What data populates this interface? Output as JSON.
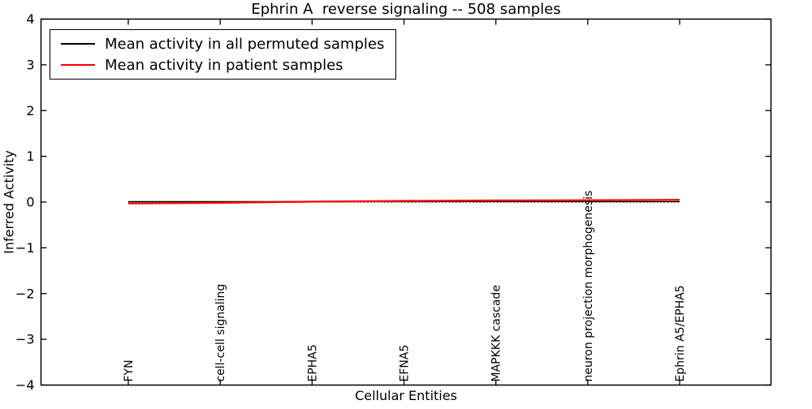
{
  "chart_data": {
    "type": "line",
    "title": "Ephrin A  reverse signaling -- 508 samples",
    "xlabel": "Cellular Entities",
    "ylabel": "Inferred Activity",
    "ylim": [
      -4,
      4
    ],
    "yticks": [
      4,
      3,
      2,
      1,
      0,
      -1,
      -2,
      -3,
      -4
    ],
    "categories": [
      "FYN",
      "cell-cell signaling",
      "EPHA5",
      "EFNA5",
      "MAPKKK cascade",
      "neuron projection morphogenesis",
      "Ephrin A5/EPHA5"
    ],
    "series": [
      {
        "name": "Mean activity in all permuted samples",
        "color": "#000000",
        "values": [
          0.01,
          0.01,
          0.01,
          0.01,
          0.01,
          0.01,
          0.01
        ]
      },
      {
        "name": "Mean activity in patient samples",
        "color": "#ff0000",
        "values": [
          -0.03,
          -0.015,
          0.01,
          0.025,
          0.035,
          0.04,
          0.05
        ]
      }
    ],
    "baseline": {
      "value": 0,
      "style": "dotted",
      "color": "#000000"
    },
    "legend_position": "upper left",
    "grid": false,
    "frame_color": "#000000"
  }
}
